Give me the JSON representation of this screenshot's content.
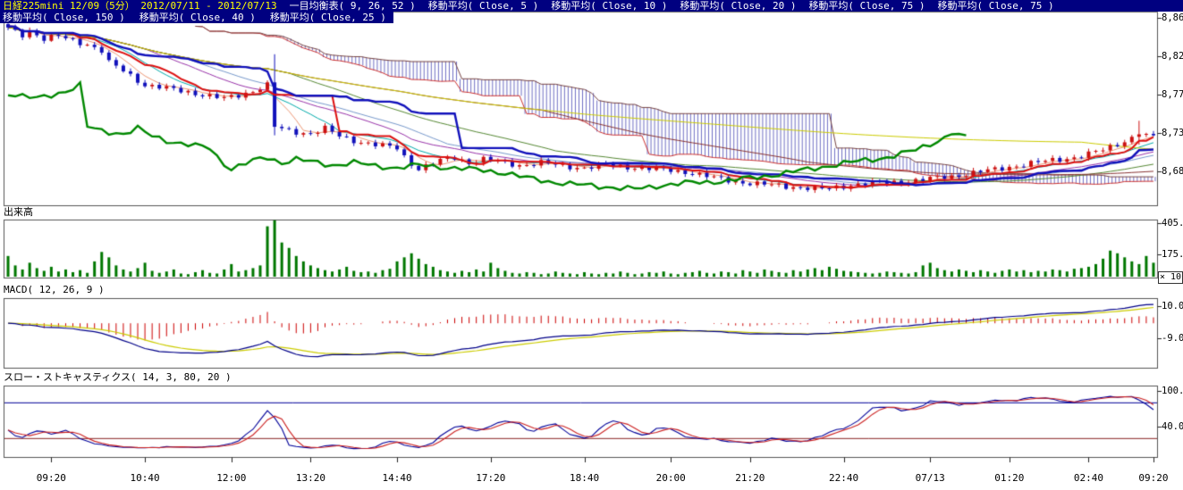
{
  "header": {
    "title": "日経225mini 12/09（5分） 2012/07/11 - 2012/07/13",
    "row1": [
      "一目均衡表( 9, 26, 52 )",
      "移動平均( Close, 5 )",
      "移動平均( Close, 10 )",
      "移動平均( Close, 20 )",
      "移動平均( Close, 75 )",
      "移動平均( Close, 75 )"
    ],
    "row2": [
      "移動平均( Close, 150 )",
      "移動平均( Close, 40 )",
      "移動平均( Close, 25 )"
    ]
  },
  "panels": {
    "volume_label": "出来高",
    "macd_label": "MACD( 12, 26, 9 )",
    "stoch_label": "スロー・ストキャスティクス( 14, 3, 80, 20 )",
    "volume_multiplier": "× 10"
  },
  "colors": {
    "header_bg": "#000080",
    "header_title": "#ffff00",
    "header_text": "#ffffff",
    "up_candle": "#cc1111",
    "down_candle": "#1111bb",
    "volume": "#007700",
    "macd_line": "#000088",
    "macd_signal": "#cccc00",
    "macd_hist": "#cc0000",
    "stoch_k": "#000099",
    "stoch_d": "#cc2222"
  },
  "chart_data": [
    {
      "type": "candlestick",
      "name": "price",
      "title": "日経225mini 12/09 5分足 2012/07/11 - 2012/07/13",
      "n": 160,
      "ylim": [
        8645,
        8872
      ],
      "yticks": [
        {
          "v": 8865,
          "label": "8,86"
        },
        {
          "v": 8820,
          "label": "8,82"
        },
        {
          "v": 8775,
          "label": "8,77"
        },
        {
          "v": 8730,
          "label": "8,73"
        },
        {
          "v": 8685,
          "label": "8,68"
        }
      ],
      "x_labels": [
        {
          "i": 6,
          "label": "09:20"
        },
        {
          "i": 19,
          "label": "10:40"
        },
        {
          "i": 31,
          "label": "12:00"
        },
        {
          "i": 42,
          "label": "13:20"
        },
        {
          "i": 54,
          "label": "14:40"
        },
        {
          "i": 67,
          "label": "17:20"
        },
        {
          "i": 80,
          "label": "18:40"
        },
        {
          "i": 92,
          "label": "20:00"
        },
        {
          "i": 103,
          "label": "21:20"
        },
        {
          "i": 116,
          "label": "22:40"
        },
        {
          "i": 128,
          "label": "07/13"
        },
        {
          "i": 139,
          "label": "01:20"
        },
        {
          "i": 150,
          "label": "02:40"
        },
        {
          "i": 159,
          "label": "09:20"
        }
      ],
      "close_waypoints": [
        [
          0,
          8852
        ],
        [
          2,
          8845
        ],
        [
          3,
          8850
        ],
        [
          5,
          8840
        ],
        [
          7,
          8843
        ],
        [
          9,
          8838
        ],
        [
          11,
          8834
        ],
        [
          13,
          8826
        ],
        [
          14,
          8812
        ],
        [
          16,
          8803
        ],
        [
          19,
          8786
        ],
        [
          22,
          8782
        ],
        [
          25,
          8778
        ],
        [
          28,
          8773
        ],
        [
          30,
          8770
        ],
        [
          32,
          8774
        ],
        [
          34,
          8779
        ],
        [
          36,
          8786
        ],
        [
          37,
          8737
        ],
        [
          39,
          8732
        ],
        [
          42,
          8729
        ],
        [
          44,
          8735
        ],
        [
          46,
          8726
        ],
        [
          48,
          8721
        ],
        [
          51,
          8716
        ],
        [
          54,
          8712
        ],
        [
          55,
          8702
        ],
        [
          56,
          8694
        ],
        [
          57,
          8688
        ],
        [
          58,
          8691
        ],
        [
          60,
          8697
        ],
        [
          62,
          8701
        ],
        [
          64,
          8695
        ],
        [
          66,
          8699
        ],
        [
          68,
          8696
        ],
        [
          71,
          8692
        ],
        [
          74,
          8695
        ],
        [
          77,
          8691
        ],
        [
          80,
          8689
        ],
        [
          83,
          8692
        ],
        [
          86,
          8690
        ],
        [
          89,
          8688
        ],
        [
          92,
          8686
        ],
        [
          95,
          8683
        ],
        [
          98,
          8677
        ],
        [
          101,
          8673
        ],
        [
          104,
          8670
        ],
        [
          107,
          8668
        ],
        [
          110,
          8666
        ],
        [
          113,
          8664
        ],
        [
          115,
          8666
        ],
        [
          117,
          8669
        ],
        [
          120,
          8671
        ],
        [
          123,
          8672
        ],
        [
          126,
          8674
        ],
        [
          128,
          8676
        ],
        [
          131,
          8679
        ],
        [
          134,
          8683
        ],
        [
          137,
          8687
        ],
        [
          139,
          8690
        ],
        [
          142,
          8694
        ],
        [
          145,
          8698
        ],
        [
          148,
          8701
        ],
        [
          150,
          8705
        ],
        [
          152,
          8710
        ],
        [
          154,
          8717
        ],
        [
          156,
          8724
        ],
        [
          157,
          8730
        ],
        [
          158,
          8726
        ],
        [
          159,
          8725
        ]
      ],
      "noise_amp": 2.4,
      "wick_overrides": {
        "37": [
          8822,
          8727
        ],
        "157": [
          8744,
          8716
        ]
      },
      "ichimoku": {
        "params": [
          9,
          26,
          52
        ],
        "colors": {
          "tenkan": "#dd1111",
          "kijun": "#1111bb",
          "chikou": "#008800",
          "senkou_a": "#cc3333",
          "senkou_b": "#774444",
          "cloud_hatch": "rgba(64,64,176,0.75)",
          "cloud_fill": "rgba(150,190,230,0.5)"
        }
      },
      "moving_averages": [
        {
          "period": 5,
          "color": "#ee9977"
        },
        {
          "period": 10,
          "color": "#00aaaa"
        },
        {
          "period": 20,
          "color": "#9933aa"
        },
        {
          "period": 25,
          "color": "#7799cc"
        },
        {
          "period": 40,
          "color": "#558833"
        },
        {
          "period": 75,
          "color": "#883333"
        },
        {
          "period": 150,
          "color": "#cccc00"
        }
      ]
    },
    {
      "type": "bar",
      "name": "volume",
      "title": "出来高",
      "unit_multiplier": "× 10",
      "ylim": [
        0,
        430
      ],
      "yticks": [
        {
          "v": 405,
          "label": "405."
        },
        {
          "v": 175,
          "label": "175."
        }
      ],
      "values": [
        160,
        90,
        60,
        110,
        70,
        50,
        80,
        45,
        60,
        40,
        55,
        35,
        120,
        190,
        150,
        90,
        60,
        45,
        70,
        110,
        50,
        35,
        45,
        60,
        30,
        25,
        40,
        55,
        35,
        30,
        60,
        100,
        45,
        55,
        70,
        90,
        380,
        425,
        260,
        220,
        160,
        120,
        90,
        70,
        55,
        45,
        60,
        80,
        50,
        40,
        45,
        35,
        55,
        65,
        120,
        150,
        180,
        140,
        100,
        80,
        55,
        45,
        35,
        50,
        40,
        60,
        45,
        110,
        70,
        50,
        35,
        30,
        40,
        35,
        25,
        30,
        45,
        35,
        30,
        25,
        40,
        30,
        25,
        35,
        30,
        45,
        35,
        25,
        30,
        40,
        35,
        45,
        30,
        25,
        35,
        40,
        50,
        35,
        30,
        45,
        40,
        30,
        55,
        45,
        35,
        60,
        50,
        40,
        35,
        55,
        45,
        60,
        70,
        55,
        80,
        65,
        50,
        45,
        40,
        35,
        30,
        35,
        45,
        40,
        35,
        30,
        40,
        90,
        110,
        70,
        55,
        45,
        60,
        50,
        40,
        55,
        45,
        35,
        50,
        60,
        45,
        55,
        40,
        50,
        45,
        60,
        55,
        45,
        65,
        70,
        80,
        100,
        140,
        200,
        180,
        150,
        120,
        100,
        160,
        110
      ]
    },
    {
      "type": "line",
      "name": "macd",
      "title": "MACD( 12, 26, 9 )",
      "params": [
        12,
        26,
        9
      ],
      "derived_from": "price.closes",
      "ylim": [
        -26.5,
        15
      ],
      "yticks": [
        {
          "v": 10,
          "label": "10.0"
        },
        {
          "v": -9,
          "label": "-9.0"
        }
      ],
      "series": [
        {
          "name": "MACD",
          "color": "#000088"
        },
        {
          "name": "Signal",
          "color": "#cccc00"
        },
        {
          "name": "Histogram",
          "color": "#cc0000",
          "style": "histogram"
        }
      ]
    },
    {
      "type": "line",
      "name": "slow_stochastics",
      "title": "スロー・ストキャスティクス( 14, 3, 80, 20 )",
      "params": [
        14,
        3,
        80,
        20
      ],
      "derived_from": "price.closes",
      "ylim": [
        -11,
        109
      ],
      "yticks": [
        {
          "v": 100,
          "label": "100."
        },
        {
          "v": 40,
          "label": "40.0"
        }
      ],
      "ref_lines": [
        {
          "v": 80,
          "color": "#000099"
        },
        {
          "v": 20,
          "color": "#882222"
        }
      ],
      "series": [
        {
          "name": "%K",
          "color": "#000099"
        },
        {
          "name": "%D",
          "color": "#cc2222"
        }
      ]
    }
  ]
}
